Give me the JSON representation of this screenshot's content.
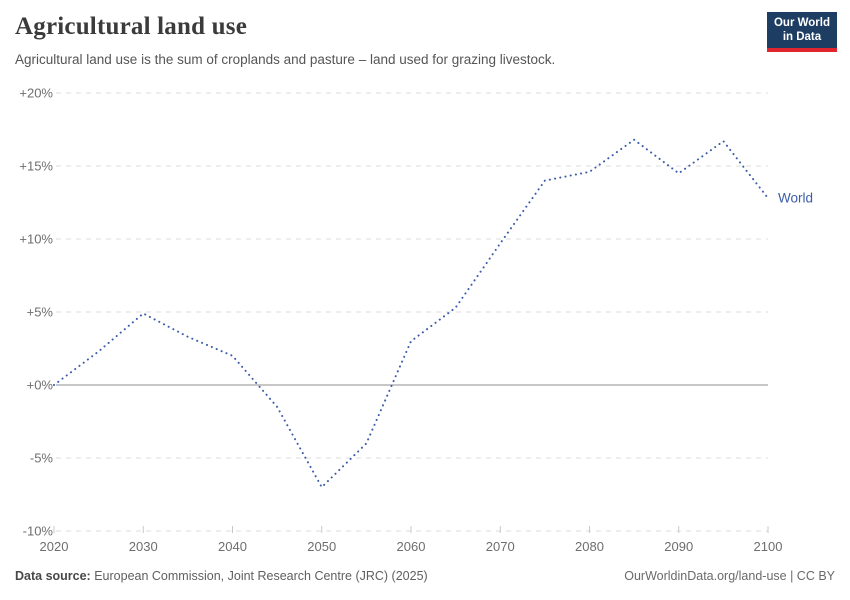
{
  "header": {
    "title": "Agricultural land use",
    "subtitle": "Agricultural land use is the sum of croplands and pasture – land used for grazing livestock.",
    "logo": {
      "line1": "Our World",
      "line2": "in Data",
      "bg_color": "#1d3d63",
      "accent_color": "#e0252e"
    }
  },
  "chart_data": {
    "type": "line",
    "line_style": "dotted",
    "title": "Agricultural land use",
    "unit": "%",
    "xlim": [
      2020,
      2100
    ],
    "ylim": [
      -10,
      20
    ],
    "grid": "horizontal-dashed",
    "zero_line": true,
    "legend_position": "end-of-line",
    "x_ticks": [
      2020,
      2030,
      2040,
      2050,
      2060,
      2070,
      2080,
      2090,
      2100
    ],
    "y_ticks": [
      20,
      15,
      10,
      5,
      0,
      -5,
      -10
    ],
    "y_tick_labels": [
      "+20%",
      "+15%",
      "+10%",
      "+5%",
      "+0%",
      "-5%",
      "-10%"
    ],
    "series": [
      {
        "name": "World",
        "color": "#3c5ea9",
        "x": [
          2020,
          2025,
          2030,
          2035,
          2040,
          2045,
          2050,
          2055,
          2060,
          2065,
          2070,
          2075,
          2080,
          2085,
          2090,
          2095,
          2100
        ],
        "values": [
          0.0,
          2.3,
          4.9,
          3.3,
          2.0,
          -1.5,
          -7.0,
          -4.0,
          3.0,
          5.3,
          9.7,
          14.0,
          14.6,
          16.8,
          14.5,
          16.7,
          12.8
        ]
      }
    ]
  },
  "footer": {
    "datasource_label": "Data source:",
    "datasource_text": "European Commission, Joint Research Centre (JRC) (2025)",
    "link_text": "OurWorldinData.org/land-use | CC BY"
  },
  "colors": {
    "grid": "#dcdcdc",
    "zero_line": "#8f8f8f",
    "axis_label": "#6e6e6e",
    "tick": "#c8c8c8"
  }
}
